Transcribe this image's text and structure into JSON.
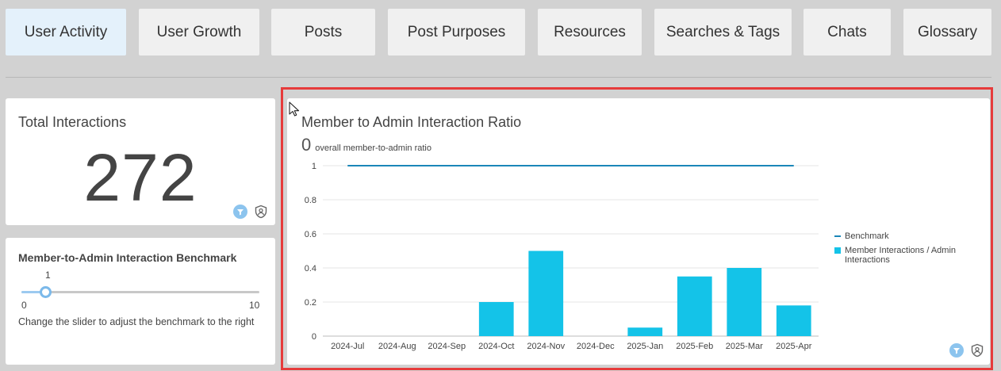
{
  "tabs": [
    {
      "label": "User Activity",
      "active": true
    },
    {
      "label": "User Growth",
      "active": false
    },
    {
      "label": "Posts",
      "active": false
    },
    {
      "label": "Post Purposes",
      "active": false
    },
    {
      "label": "Resources",
      "active": false
    },
    {
      "label": "Searches & Tags",
      "active": false
    },
    {
      "label": "Chats",
      "active": false
    },
    {
      "label": "Glossary",
      "active": false
    }
  ],
  "kpi": {
    "title": "Total Interactions",
    "value": "272"
  },
  "benchmark": {
    "title": "Member-to-Admin Interaction Benchmark",
    "value": "1",
    "min": "0",
    "max": "10",
    "level": 0.1,
    "hint": "Change the slider to adjust the benchmark to the right"
  },
  "chart": {
    "title": "Member to Admin Interaction Ratio",
    "overall_value": "0",
    "overall_label": "overall member-to-admin ratio"
  },
  "icons": {
    "filter": "filter-icon",
    "user_shield": "user-shield-icon"
  },
  "colors": {
    "accent_bar": "#14c3e8",
    "benchmark_line": "#1b87b8",
    "active_tab": "#e4f1fb",
    "highlight_border": "#e63b3b"
  },
  "chart_data": {
    "type": "bar",
    "title": "Member to Admin Interaction Ratio",
    "categories": [
      "2024-Jul",
      "2024-Aug",
      "2024-Sep",
      "2024-Oct",
      "2024-Nov",
      "2024-Dec",
      "2025-Jan",
      "2025-Feb",
      "2025-Mar",
      "2025-Apr"
    ],
    "series": [
      {
        "name": "Member Interactions / Admin Interactions",
        "type": "bar",
        "values": [
          0,
          0,
          0,
          0.2,
          0.5,
          0,
          0.05,
          0.35,
          0.4,
          0.18
        ]
      },
      {
        "name": "Benchmark",
        "type": "line",
        "values": [
          1,
          1,
          1,
          1,
          1,
          1,
          1,
          1,
          1,
          1
        ]
      }
    ],
    "yticks": [
      "0",
      "0.2",
      "0.4",
      "0.6",
      "0.8",
      "1"
    ],
    "ylim": [
      0,
      1
    ],
    "grid": true,
    "legend": "right"
  }
}
